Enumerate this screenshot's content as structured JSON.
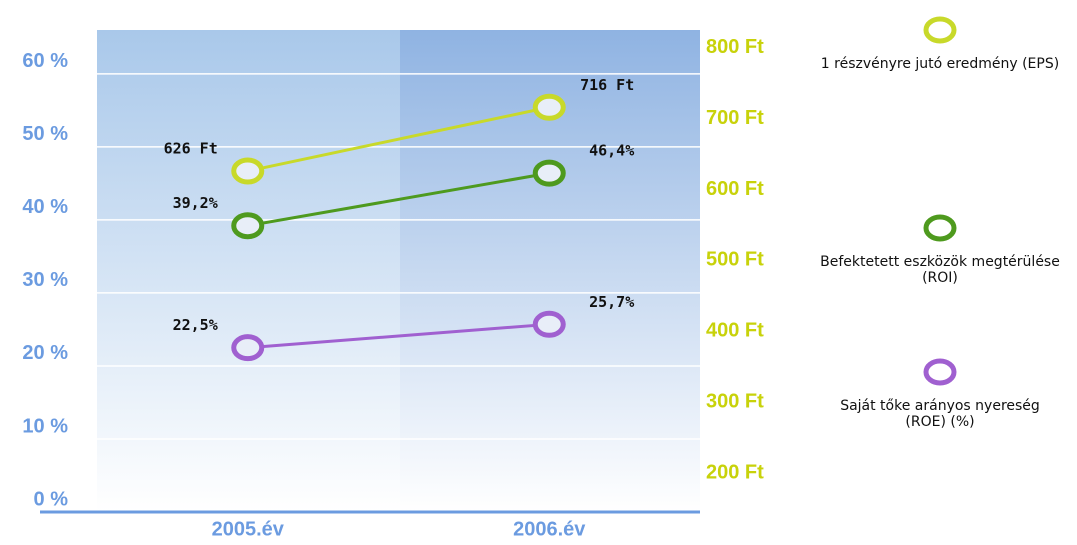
{
  "chart_data": {
    "type": "line",
    "categories": [
      "2005.év",
      "2006.év"
    ],
    "series": [
      {
        "name": "1 részvényre jutó eredmény (EPS)",
        "color": "#c8d92a",
        "axis": "y2",
        "values": [
          626,
          716
        ],
        "value_labels": [
          "626 Ft",
          "716 Ft"
        ]
      },
      {
        "name": "Befektetett eszközök megtérülése (ROI)",
        "color": "#4e9a1e",
        "values": [
          39.2,
          46.4
        ],
        "value_labels": [
          "39,2%",
          "46,4%"
        ]
      },
      {
        "name": "Saját tőke arányos nyereség (ROE) (%)",
        "color": "#a060d0",
        "values": [
          22.5,
          25.7
        ],
        "value_labels": [
          "22,5%",
          "25,7%"
        ]
      }
    ],
    "ylim": [
      0,
      66
    ],
    "yticks": [
      {
        "value": 0,
        "label": "0 %"
      },
      {
        "value": 10,
        "label": "10 %"
      },
      {
        "value": 20,
        "label": "20 %"
      },
      {
        "value": 30,
        "label": "30 %"
      },
      {
        "value": 40,
        "label": "40 %"
      },
      {
        "value": 50,
        "label": "50 %"
      },
      {
        "value": 60,
        "label": "60 %"
      }
    ],
    "y2lim": [
      145,
      825
    ],
    "y2ticks": [
      {
        "value": 200,
        "label": "200 Ft"
      },
      {
        "value": 300,
        "label": "300 Ft"
      },
      {
        "value": 400,
        "label": "400 Ft"
      },
      {
        "value": 500,
        "label": "500 Ft"
      },
      {
        "value": 600,
        "label": "600 Ft"
      },
      {
        "value": 700,
        "label": "700 Ft"
      },
      {
        "value": 800,
        "label": "800 Ft"
      }
    ],
    "grid": true
  }
}
